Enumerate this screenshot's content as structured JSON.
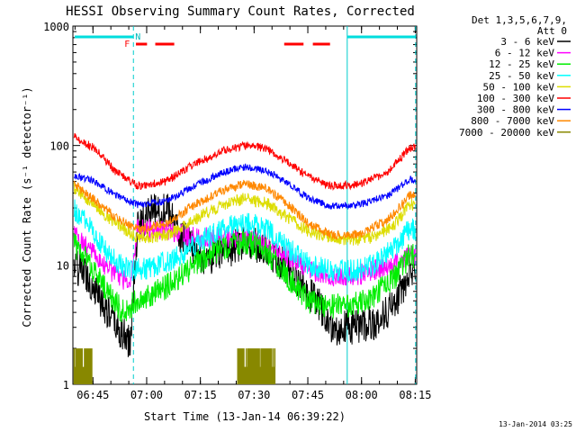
{
  "chart_data": {
    "type": "line",
    "title": "HESSI Observing Summary Count Rates, Corrected",
    "xlabel": "Start Time (13-Jan-14 06:39:22)",
    "ylabel": "Corrected Count Rate (s⁻¹ detector⁻¹)",
    "y_scale": "log",
    "ylim": [
      1,
      1000
    ],
    "xlim_minutes": [
      0,
      96
    ],
    "y_ticks": [
      "1000",
      "100",
      "10",
      "1"
    ],
    "x_ticks": [
      {
        "label": "06:45",
        "t": 5.6
      },
      {
        "label": "07:00",
        "t": 20.6
      },
      {
        "label": "07:15",
        "t": 35.6
      },
      {
        "label": "07:30",
        "t": 50.6
      },
      {
        "label": "07:45",
        "t": 65.6
      },
      {
        "label": "08:00",
        "t": 80.6
      },
      {
        "label": "08:15",
        "t": 95.6
      }
    ],
    "legend": {
      "position": "right",
      "header": [
        "Det 1,3,5,6,7,9,",
        "Att 0"
      ]
    },
    "series": [
      {
        "name": "3 - 6 keV",
        "color": "#000000"
      },
      {
        "name": "6 - 12 keV",
        "color": "#ff00ff"
      },
      {
        "name": "12 - 25 keV",
        "color": "#00ee00"
      },
      {
        "name": "25 - 50 keV",
        "color": "#00ffff"
      },
      {
        "name": "50 - 100 keV",
        "color": "#dddd00"
      },
      {
        "name": "100 - 300 keV",
        "color": "#ff0000"
      },
      {
        "name": "300 - 800 keV",
        "color": "#0000ff"
      },
      {
        "name": "800 - 7000 keV",
        "color": "#ff8800"
      },
      {
        "name": "7000 - 20000 keV",
        "color": "#888800"
      }
    ],
    "annotations": {
      "fast_rate_label": "F",
      "night_label": "N"
    },
    "footer_date": "13-Jan-2014 03:25"
  }
}
